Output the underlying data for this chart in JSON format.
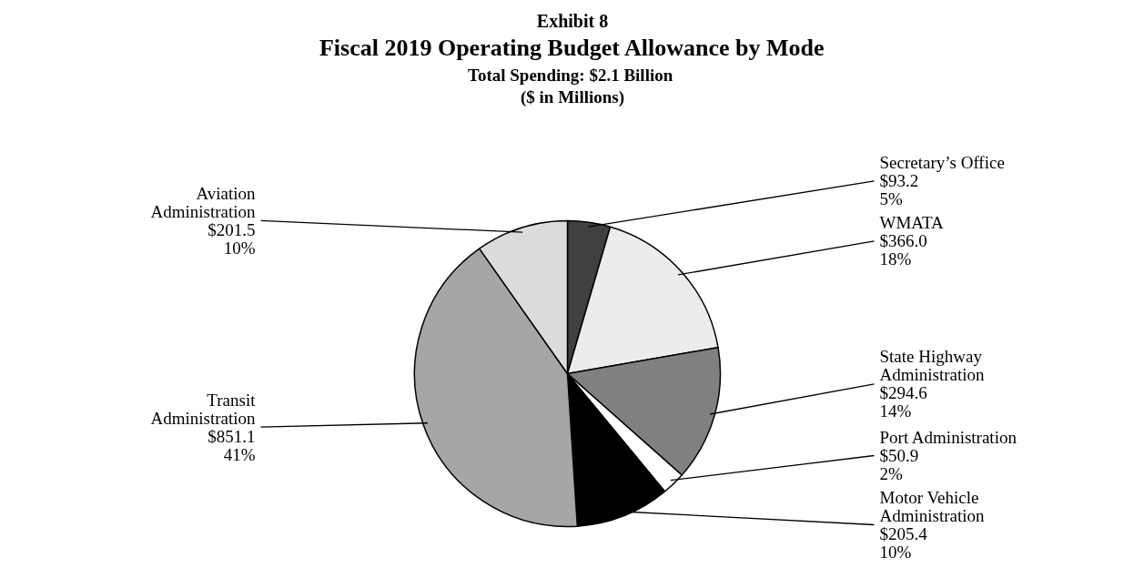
{
  "chart_data": {
    "type": "pie",
    "title": "Exhibit 8\nFiscal 2019 Operating Budget Allowance by Mode",
    "subtitle": "Total Spending:  $2.1 Billion\n($ in Millions)",
    "categories": [
      "Secretary’s Office",
      "WMATA",
      "State Highway Administration",
      "Port Administration",
      "Motor Vehicle Administration",
      "Transit Administration",
      "Aviation Administration"
    ],
    "values": [
      93.2,
      366.0,
      294.6,
      50.9,
      205.4,
      851.1,
      201.5
    ],
    "value_labels": [
      "$93.2\n5%",
      "$366.0\n18%",
      "$294.6\n14%",
      "$50.9\n2%",
      "$205.4\n10%",
      "$851.1\n41%",
      "$201.5\n10%"
    ],
    "colors": [
      "#404040",
      "#ececec",
      "#808080",
      "#ffffff",
      "#000000",
      "#a6a6a6",
      "#dcdcdc"
    ]
  }
}
